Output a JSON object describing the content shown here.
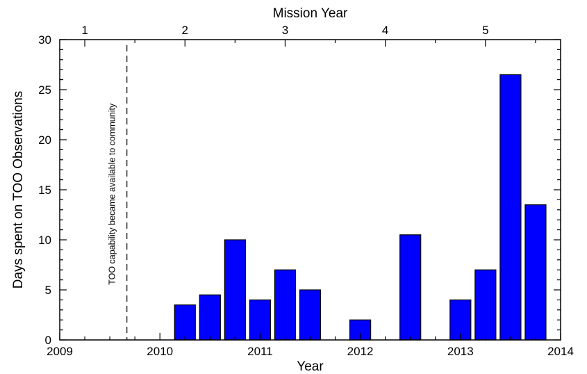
{
  "chart_data": {
    "type": "bar",
    "title": "",
    "xlabel": "Year",
    "ylabel": "Days spent on TOO Observations",
    "top_xlabel": "Mission Year",
    "xlim": [
      2009,
      2014
    ],
    "ylim": [
      0,
      30
    ],
    "x_ticks": [
      2009,
      2010,
      2011,
      2012,
      2013,
      2014
    ],
    "x_tick_labels": [
      "2009",
      "2010",
      "2011",
      "2012",
      "2013",
      "2014"
    ],
    "y_ticks": [
      0,
      5,
      10,
      15,
      20,
      25,
      30
    ],
    "y_tick_labels": [
      "0",
      "5",
      "10",
      "15",
      "20",
      "25",
      "30"
    ],
    "top_ticks": [
      2009.25,
      2010.25,
      2011.25,
      2012.25,
      2013.25
    ],
    "top_tick_labels": [
      "1",
      "2",
      "3",
      "4",
      "5"
    ],
    "bar_color": "#0000ff",
    "bar_width_years": 0.2083,
    "series": [
      {
        "x": [
          2010.25,
          2010.5,
          2010.75,
          2011.0,
          2011.25,
          2011.5,
          2012.0,
          2012.5,
          2013.0,
          2013.25,
          2013.5,
          2013.75
        ],
        "values": [
          3.5,
          4.5,
          10,
          4,
          7,
          5,
          2,
          10.5,
          4,
          7,
          26.5,
          13.5
        ]
      }
    ],
    "annotation": {
      "text": "TOO capability became available to community",
      "x": 2009.67
    },
    "grid": false,
    "legend": "none"
  }
}
